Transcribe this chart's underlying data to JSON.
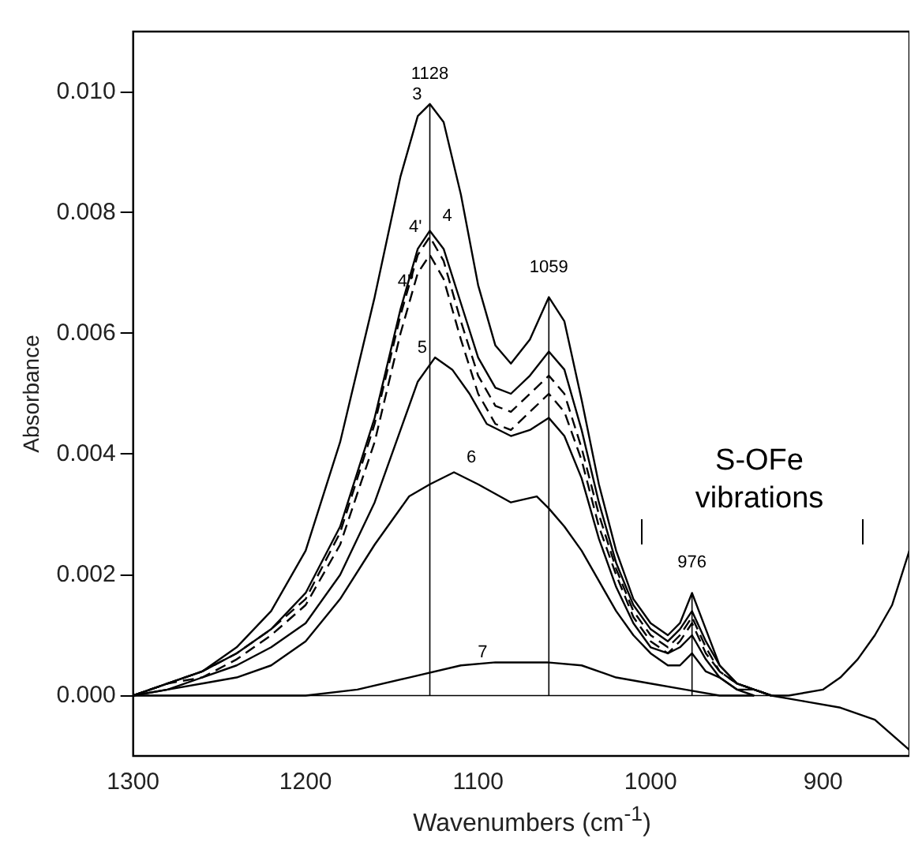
{
  "chart_data": {
    "type": "line",
    "xlabel": "Wavenumbers (cm$^{-1}$)",
    "ylabel": "Absorbance",
    "xlim": [
      1300,
      850
    ],
    "xticks": [
      1300,
      1200,
      1100,
      1000,
      900
    ],
    "ylim": [
      -0.001,
      0.011
    ],
    "yticks": [
      {
        "value": 0,
        "label": "0.000"
      },
      {
        "value": 0.002,
        "label": "0.002"
      },
      {
        "value": 0.004,
        "label": "0.004"
      },
      {
        "value": 0.006,
        "label": "0.006"
      },
      {
        "value": 0.008,
        "label": "0.008"
      },
      {
        "value": 0.01,
        "label": "0.010"
      }
    ],
    "grid": false,
    "legend": false,
    "marker": "none",
    "series": [
      {
        "name": "3",
        "color": "#000000",
        "line_style": "solid",
        "x": [
          1300,
          1280,
          1260,
          1240,
          1220,
          1200,
          1180,
          1160,
          1145,
          1135,
          1128,
          1120,
          1110,
          1100,
          1090,
          1081,
          1070,
          1059,
          1050,
          1040,
          1030,
          1020,
          1010,
          1000,
          990,
          983,
          976,
          968,
          960,
          950,
          940,
          930,
          920,
          900,
          890,
          880,
          870,
          860,
          850
        ],
        "values": [
          0,
          0.0002,
          0.0004,
          0.0008,
          0.0014,
          0.0024,
          0.0042,
          0.0066,
          0.0086,
          0.0096,
          0.0098,
          0.0095,
          0.0083,
          0.0068,
          0.0058,
          0.0055,
          0.0059,
          0.0066,
          0.0062,
          0.0049,
          0.0035,
          0.0024,
          0.0016,
          0.0012,
          0.001,
          0.0012,
          0.0017,
          0.0011,
          0.0005,
          0.0002,
          0.0001,
          0,
          0,
          0.0001,
          0.0003,
          0.0006,
          0.001,
          0.0015,
          0.0024
        ]
      },
      {
        "name": "4",
        "color": "#000000",
        "line_style": "solid",
        "x": [
          1300,
          1280,
          1260,
          1240,
          1220,
          1200,
          1180,
          1160,
          1145,
          1135,
          1128,
          1120,
          1110,
          1100,
          1090,
          1081,
          1070,
          1059,
          1050,
          1040,
          1030,
          1020,
          1010,
          1000,
          990,
          983,
          976,
          968,
          960,
          950,
          940,
          930,
          910,
          890,
          870,
          850
        ],
        "values": [
          0,
          0.0002,
          0.0004,
          0.0007,
          0.0011,
          0.0017,
          0.0028,
          0.0046,
          0.0064,
          0.0074,
          0.0077,
          0.0074,
          0.0065,
          0.0056,
          0.0051,
          0.005,
          0.0053,
          0.0057,
          0.0054,
          0.0044,
          0.0032,
          0.0022,
          0.0015,
          0.0011,
          0.0009,
          0.0011,
          0.0014,
          0.0009,
          0.0005,
          0.0002,
          0.0001,
          0,
          -0.0001,
          -0.0002,
          -0.0004,
          -0.0009
        ]
      },
      {
        "name": "4'",
        "color": "#000000",
        "line_style": "dashed",
        "x": [
          1300,
          1280,
          1260,
          1240,
          1220,
          1200,
          1180,
          1160,
          1145,
          1135,
          1128,
          1120,
          1110,
          1100,
          1090,
          1081,
          1070,
          1059,
          1050,
          1040,
          1030,
          1020,
          1010,
          1000,
          990,
          983,
          976,
          968,
          960,
          950,
          940,
          930
        ],
        "values": [
          0,
          0.0002,
          0.0004,
          0.0007,
          0.0011,
          0.0016,
          0.0027,
          0.0045,
          0.0063,
          0.0073,
          0.0076,
          0.0072,
          0.0062,
          0.0053,
          0.0048,
          0.0047,
          0.005,
          0.0053,
          0.005,
          0.0041,
          0.003,
          0.0021,
          0.0014,
          0.001,
          0.0008,
          0.001,
          0.0013,
          0.0008,
          0.0004,
          0.0002,
          0.0001,
          0
        ]
      },
      {
        "name": "4''",
        "color": "#000000",
        "line_style": "dashed",
        "x": [
          1300,
          1280,
          1260,
          1240,
          1220,
          1200,
          1180,
          1160,
          1145,
          1135,
          1128,
          1120,
          1110,
          1100,
          1090,
          1081,
          1070,
          1059,
          1050,
          1040,
          1030,
          1020,
          1010,
          1000,
          990,
          983,
          976,
          968,
          960,
          950,
          940,
          930
        ],
        "values": [
          0,
          0.0002,
          0.0003,
          0.0006,
          0.001,
          0.0015,
          0.0025,
          0.0042,
          0.006,
          0.007,
          0.0073,
          0.0069,
          0.0059,
          0.005,
          0.0045,
          0.0044,
          0.0047,
          0.005,
          0.0047,
          0.0039,
          0.0028,
          0.002,
          0.0013,
          0.0009,
          0.0007,
          0.0009,
          0.0012,
          0.0007,
          0.0004,
          0.0002,
          0.0001,
          0
        ]
      },
      {
        "name": "5",
        "color": "#000000",
        "line_style": "solid",
        "x": [
          1300,
          1280,
          1260,
          1240,
          1220,
          1200,
          1180,
          1160,
          1145,
          1135,
          1125,
          1115,
          1105,
          1095,
          1081,
          1070,
          1059,
          1050,
          1040,
          1030,
          1020,
          1010,
          1000,
          990,
          983,
          976,
          968,
          960,
          950,
          940,
          930
        ],
        "values": [
          0,
          0.0001,
          0.0003,
          0.0005,
          0.0008,
          0.0012,
          0.002,
          0.0032,
          0.0044,
          0.0052,
          0.0056,
          0.0054,
          0.005,
          0.0045,
          0.0043,
          0.0044,
          0.0046,
          0.0043,
          0.0036,
          0.0026,
          0.0018,
          0.0012,
          0.0008,
          0.0007,
          0.0008,
          0.001,
          0.0006,
          0.0003,
          0.0001,
          0.0001,
          0
        ]
      },
      {
        "name": "6",
        "color": "#000000",
        "line_style": "solid",
        "x": [
          1300,
          1280,
          1260,
          1240,
          1220,
          1200,
          1180,
          1160,
          1140,
          1128,
          1114,
          1100,
          1081,
          1066,
          1059,
          1050,
          1040,
          1030,
          1020,
          1010,
          1000,
          990,
          983,
          976,
          968,
          960,
          950,
          940
        ],
        "values": [
          0,
          0.0001,
          0.0002,
          0.0003,
          0.0005,
          0.0009,
          0.0016,
          0.0025,
          0.0033,
          0.0035,
          0.0037,
          0.0035,
          0.0032,
          0.0033,
          0.0031,
          0.0028,
          0.0024,
          0.0019,
          0.0014,
          0.001,
          0.0007,
          0.0005,
          0.0005,
          0.0007,
          0.0004,
          0.0003,
          0.0001,
          0
        ]
      },
      {
        "name": "7",
        "color": "#000000",
        "line_style": "solid",
        "x": [
          1300,
          1240,
          1200,
          1170,
          1140,
          1110,
          1090,
          1060,
          1040,
          1020,
          1000,
          980,
          960,
          940
        ],
        "values": [
          0,
          0,
          0,
          0.0001,
          0.0003,
          0.0005,
          0.00055,
          0.00055,
          0.0005,
          0.0003,
          0.0002,
          0.0001,
          0,
          0
        ]
      }
    ],
    "ref_lines": [
      {
        "axis": "x",
        "value": 1128,
        "label": "1128"
      },
      {
        "axis": "x",
        "value": 1059,
        "label": "1059"
      },
      {
        "axis": "x",
        "value": 976,
        "label": "976"
      },
      {
        "axis": "y",
        "value": 0,
        "label": null
      }
    ],
    "annotations": [
      "S-OFe vibrations"
    ]
  }
}
